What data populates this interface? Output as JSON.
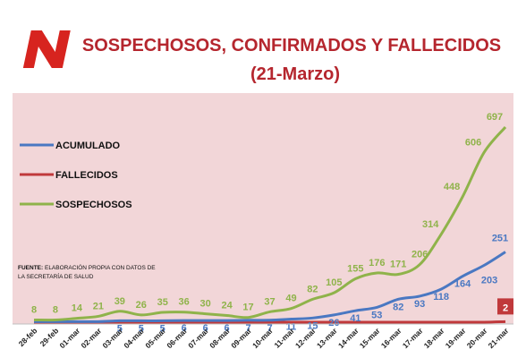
{
  "header": {
    "title_line1": "SOSPECHOSOS, CONFIRMADOS Y FALLECIDOS",
    "title_line2": "(21-Marzo)",
    "logo_letter": "N"
  },
  "source_note": {
    "label": "FUENTE:",
    "line1": "ELABORACIÓN PROPIA CON DATOS DE",
    "line2": "LA SECRETARÍA DE SALUD"
  },
  "colors": {
    "background": "#f2d6d8",
    "accent": "#b5262e",
    "acumulado": "#4a78c2",
    "fallecidos": "#c0393b",
    "sospechosos": "#8fb34a"
  },
  "chart_data": {
    "type": "line",
    "title": "SOSPECHOSOS, CONFIRMADOS Y FALLECIDOS (21-Marzo)",
    "xlabel": "",
    "ylabel": "",
    "ylim": [
      0,
      720
    ],
    "grid": false,
    "legend_placement": "left",
    "categories": [
      "28-feb",
      "29-feb",
      "01-mar",
      "02-mar",
      "03-mar",
      "04-mar",
      "05-mar",
      "06-mar",
      "07-mar",
      "08-mar",
      "09-mar",
      "10-mar",
      "11-mar",
      "12-mar",
      "13-mar",
      "14-mar",
      "15-mar",
      "16-mar",
      "17-mar",
      "18-mar",
      "19-mar",
      "20-mar",
      "21-mar"
    ],
    "series": [
      {
        "name": "ACUMULADO",
        "values": [
          2,
          2,
          2,
          2,
          5,
          5,
          5,
          6,
          6,
          6,
          7,
          7,
          11,
          15,
          26,
          41,
          53,
          82,
          93,
          118,
          164,
          203,
          251
        ],
        "labels": [
          "",
          "",
          "",
          "",
          "5",
          "5",
          "5",
          "6",
          "6",
          "6",
          "7",
          "7",
          "11",
          "15",
          "26",
          "41",
          "53",
          "82",
          "93",
          "118",
          "164",
          "203",
          "251"
        ]
      },
      {
        "name": "FALLECIDOS",
        "values": [
          0,
          0,
          0,
          0,
          0,
          0,
          0,
          0,
          0,
          0,
          0,
          0,
          0,
          0,
          0,
          0,
          0,
          0,
          0,
          0,
          0,
          0,
          2
        ],
        "labels": [
          "",
          "",
          "",
          "",
          "",
          "",
          "",
          "",
          "",
          "",
          "",
          "",
          "",
          "",
          "",
          "",
          "",
          "",
          "",
          "",
          "",
          "",
          "2"
        ]
      },
      {
        "name": "SOSPECHOSOS",
        "values": [
          8,
          8,
          14,
          21,
          39,
          26,
          35,
          36,
          30,
          24,
          17,
          37,
          49,
          82,
          105,
          155,
          176,
          171,
          206,
          314,
          448,
          606,
          697
        ],
        "labels": [
          "8",
          "8",
          "14",
          "21",
          "39",
          "26",
          "35",
          "36",
          "30",
          "24",
          "17",
          "37",
          "49",
          "82",
          "105",
          "155",
          "176",
          "171",
          "206",
          "314",
          "448",
          "606",
          "697"
        ]
      }
    ]
  }
}
